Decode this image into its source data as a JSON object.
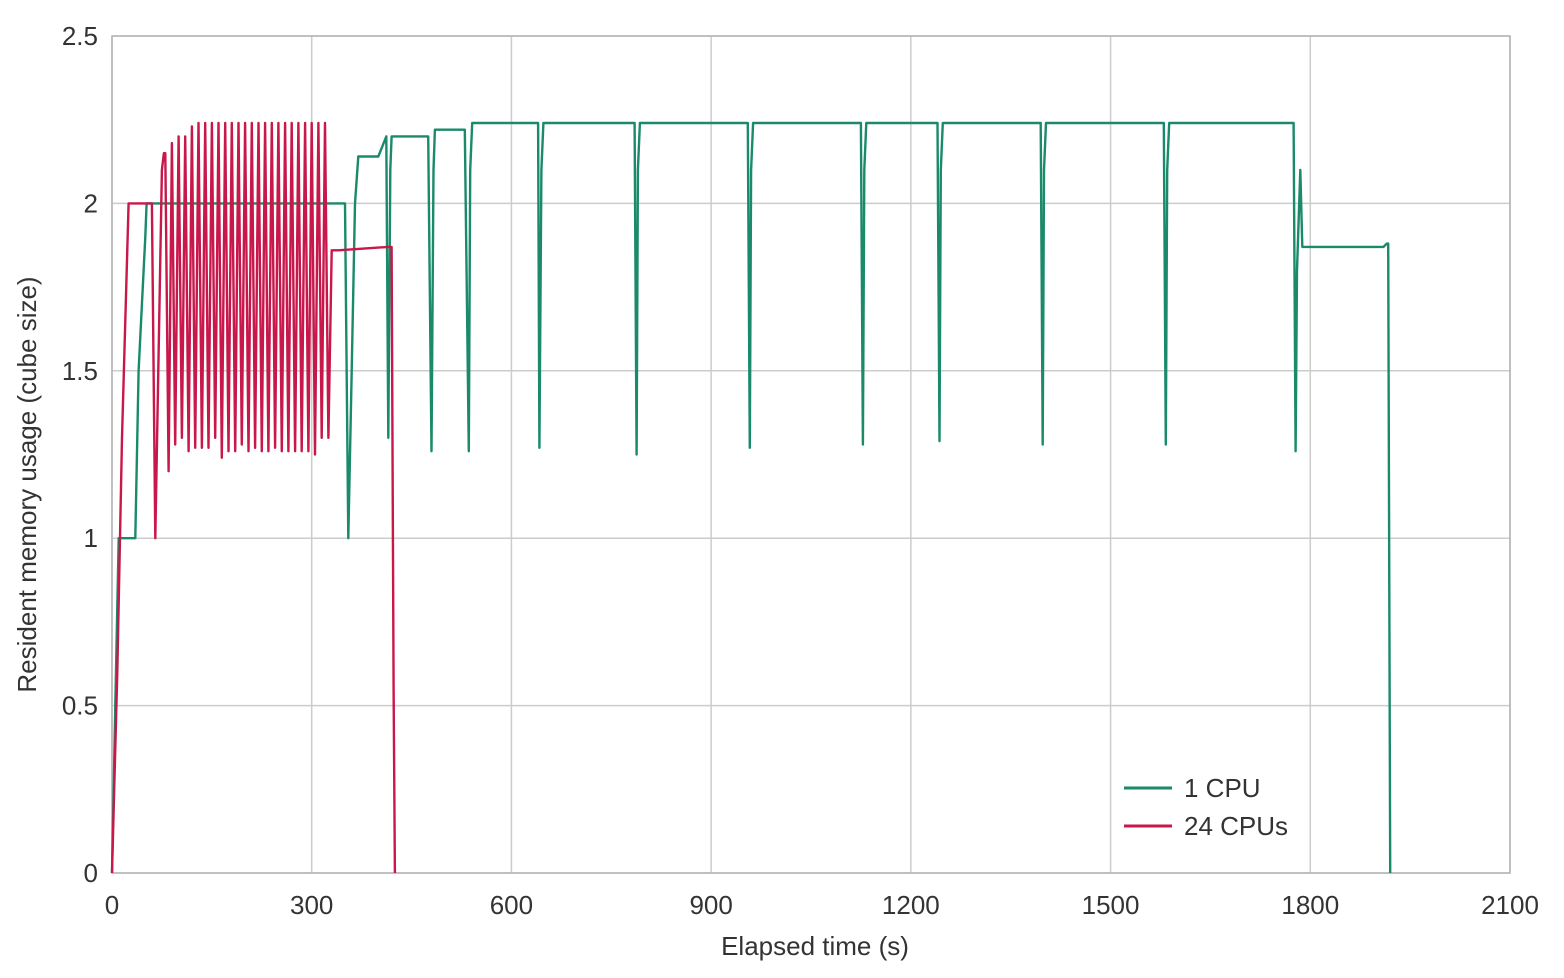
{
  "chart_data": {
    "type": "line",
    "xlabel": "Elapsed time (s)",
    "ylabel": "Resident memory usage (cube size)",
    "xlim": [
      0,
      2100
    ],
    "ylim": [
      0,
      2.5
    ],
    "xticks": [
      0,
      300,
      600,
      900,
      1200,
      1500,
      1800,
      2100
    ],
    "yticks": [
      0,
      0.5,
      1,
      1.5,
      2,
      2.5
    ],
    "xtick_labels": [
      "0",
      "300",
      "600",
      "900",
      "1200",
      "1500",
      "1800",
      "2100"
    ],
    "ytick_labels": [
      "0",
      "0.5",
      "1",
      "1.5",
      "2",
      "2.5"
    ],
    "grid": true,
    "legend_position": "bottom-right",
    "series": [
      {
        "name": "1 CPU",
        "color": "#1a8a6a",
        "x": [
          0,
          5,
          10,
          15,
          35,
          40,
          50,
          52,
          54,
          300,
          350,
          355,
          360,
          365,
          370,
          400,
          412,
          415,
          418,
          420,
          425,
          475,
          480,
          483,
          485,
          490,
          530,
          536,
          538,
          541,
          545,
          640,
          642,
          645,
          648,
          655,
          785,
          788,
          790,
          793,
          800,
          955,
          958,
          960,
          963,
          970,
          1125,
          1128,
          1130,
          1133,
          1140,
          1240,
          1243,
          1245,
          1248,
          1255,
          1395,
          1398,
          1400,
          1403,
          1410,
          1580,
          1583,
          1585,
          1588,
          1595,
          1775,
          1778,
          1780,
          1785,
          1788,
          1790,
          1795,
          1910,
          1915,
          1917,
          1920
        ],
        "y": [
          0,
          0.5,
          1,
          1,
          1,
          1.5,
          1.9,
          2,
          2,
          2,
          2,
          1,
          1.5,
          2,
          2.14,
          2.14,
          2.2,
          1.3,
          2.1,
          2.2,
          2.2,
          2.2,
          1.26,
          2.1,
          2.22,
          2.22,
          2.22,
          1.26,
          2.1,
          2.24,
          2.24,
          2.24,
          1.27,
          2.1,
          2.24,
          2.24,
          2.24,
          1.25,
          2.1,
          2.24,
          2.24,
          2.24,
          1.27,
          2.1,
          2.24,
          2.24,
          2.24,
          1.28,
          2.1,
          2.24,
          2.24,
          2.24,
          1.29,
          2.1,
          2.24,
          2.24,
          2.24,
          1.28,
          2.1,
          2.24,
          2.24,
          2.24,
          1.28,
          2.1,
          2.24,
          2.24,
          2.24,
          1.26,
          1.8,
          2.1,
          1.87,
          1.87,
          1.87,
          1.87,
          1.88,
          1.88,
          0
        ]
      },
      {
        "name": "24 CPUs",
        "color": "#c8174a",
        "x": [
          0,
          8,
          15,
          25,
          60,
          65,
          75,
          78,
          80,
          85,
          90,
          95,
          100,
          105,
          110,
          115,
          120,
          125,
          130,
          135,
          140,
          145,
          150,
          155,
          160,
          165,
          170,
          175,
          180,
          185,
          190,
          195,
          200,
          205,
          210,
          215,
          220,
          225,
          230,
          235,
          240,
          245,
          250,
          255,
          260,
          265,
          270,
          275,
          280,
          285,
          290,
          295,
          300,
          305,
          310,
          315,
          320,
          325,
          330,
          335,
          340,
          415,
          420,
          423,
          425
        ],
        "y": [
          0,
          0.6,
          1.3,
          2,
          2,
          1,
          2.1,
          2.15,
          2.15,
          1.2,
          2.18,
          1.28,
          2.2,
          1.3,
          2.2,
          1.26,
          2.23,
          1.27,
          2.24,
          1.27,
          2.24,
          1.27,
          2.24,
          1.3,
          2.24,
          1.24,
          2.24,
          1.26,
          2.24,
          1.26,
          2.24,
          1.28,
          2.24,
          1.26,
          2.24,
          1.27,
          2.24,
          1.26,
          2.24,
          1.26,
          2.24,
          1.27,
          2.24,
          1.26,
          2.24,
          1.26,
          2.24,
          1.26,
          2.24,
          1.26,
          2.24,
          1.26,
          2.24,
          1.25,
          2.24,
          1.3,
          2.24,
          1.3,
          1.86,
          1.86,
          1.86,
          1.87,
          1.87,
          0.55,
          0
        ]
      }
    ]
  }
}
